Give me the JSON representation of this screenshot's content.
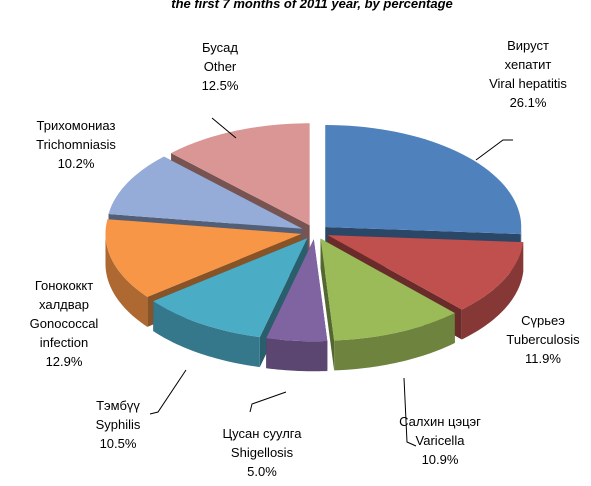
{
  "chart_data": {
    "type": "pie",
    "title": "the  first 7 months of 2011 year, by percentage",
    "categories": [
      [
        "Вируст",
        "хепатит",
        "Viral hepatitis"
      ],
      [
        "Сүрьеэ",
        "Tuberculosis"
      ],
      [
        "Салхин цэцэг",
        "Varicella"
      ],
      [
        "Цусан суулга",
        "Shigellosis"
      ],
      [
        "Тэмбүү",
        "Syphilis"
      ],
      [
        "Гонококкт",
        "халдвар",
        "Gonococcal",
        "infection"
      ],
      [
        "Трихомониаз",
        "Trichomniasis"
      ],
      [
        "Бусад",
        "Other"
      ]
    ],
    "values": [
      26.1,
      11.9,
      10.9,
      5.0,
      10.5,
      12.9,
      10.2,
      12.5
    ],
    "value_labels": [
      "26.1%",
      "11.9%",
      "10.9%",
      "5.0%",
      "10.5%",
      "12.9%",
      "10.2%",
      "12.5%"
    ],
    "colors": [
      "#4f81bd",
      "#c0504d",
      "#9bbb59",
      "#8064a2",
      "#4bacc6",
      "#f79646",
      "#95acd8",
      "#d99694"
    ]
  }
}
